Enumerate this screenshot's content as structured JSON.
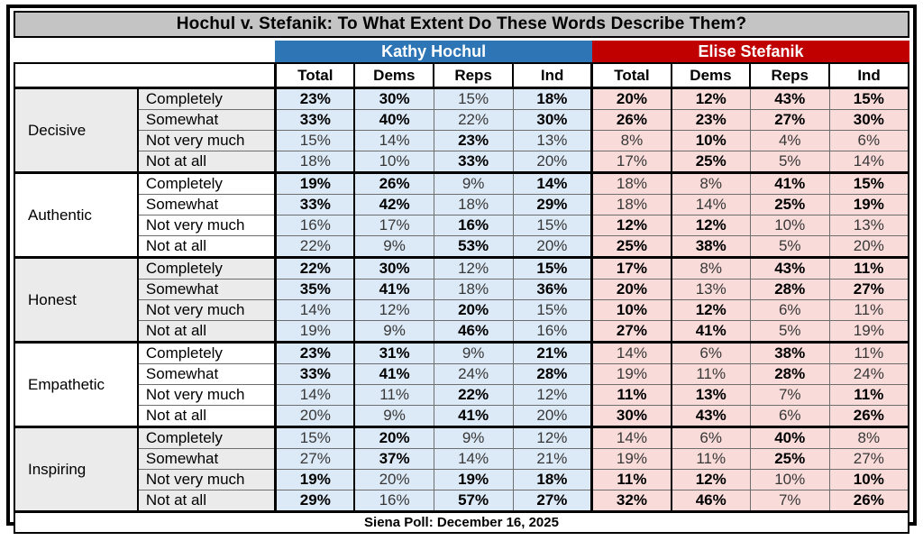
{
  "colors": {
    "hochul_header": "#2e75b6",
    "stefanik_header": "#c00000",
    "hochul_cell": "#dce9f6",
    "stefanik_cell": "#f9dcda",
    "title_bar": "#c4c4c4",
    "label_shade": "#ebebeb"
  },
  "chart_data": {
    "type": "table",
    "title": "Hochul v. Stefanik: To What Extent Do These Words Describe Them?",
    "source_note": "Siena Poll: December 16, 2025",
    "col_groups": [
      "Kathy Hochul",
      "Elise Stefanik"
    ],
    "columns": [
      "Total",
      "Dems",
      "Reps",
      "Ind"
    ],
    "answer_scale": [
      "Completely",
      "Somewhat",
      "Not very much",
      "Not at all"
    ],
    "sections": [
      {
        "trait": "Decisive",
        "rows": [
          {
            "label": "Completely",
            "hochul": [
              "23%",
              "30%",
              "15%",
              "18%"
            ],
            "hochul_bold": [
              1,
              1,
              0,
              1
            ],
            "stefanik": [
              "20%",
              "12%",
              "43%",
              "15%"
            ],
            "stefanik_bold": [
              1,
              1,
              1,
              1
            ]
          },
          {
            "label": "Somewhat",
            "hochul": [
              "33%",
              "40%",
              "22%",
              "30%"
            ],
            "hochul_bold": [
              1,
              1,
              0,
              1
            ],
            "stefanik": [
              "26%",
              "23%",
              "27%",
              "30%"
            ],
            "stefanik_bold": [
              1,
              1,
              1,
              1
            ]
          },
          {
            "label": "Not very much",
            "hochul": [
              "15%",
              "14%",
              "23%",
              "13%"
            ],
            "hochul_bold": [
              0,
              0,
              1,
              0
            ],
            "stefanik": [
              "8%",
              "10%",
              "4%",
              "6%"
            ],
            "stefanik_bold": [
              0,
              1,
              0,
              0
            ]
          },
          {
            "label": "Not at all",
            "hochul": [
              "18%",
              "10%",
              "33%",
              "20%"
            ],
            "hochul_bold": [
              0,
              0,
              1,
              0
            ],
            "stefanik": [
              "17%",
              "25%",
              "5%",
              "14%"
            ],
            "stefanik_bold": [
              0,
              1,
              0,
              0
            ]
          }
        ]
      },
      {
        "trait": "Authentic",
        "rows": [
          {
            "label": "Completely",
            "hochul": [
              "19%",
              "26%",
              "9%",
              "14%"
            ],
            "hochul_bold": [
              1,
              1,
              0,
              1
            ],
            "stefanik": [
              "18%",
              "8%",
              "41%",
              "15%"
            ],
            "stefanik_bold": [
              0,
              0,
              1,
              1
            ]
          },
          {
            "label": "Somewhat",
            "hochul": [
              "33%",
              "42%",
              "18%",
              "29%"
            ],
            "hochul_bold": [
              1,
              1,
              0,
              1
            ],
            "stefanik": [
              "18%",
              "14%",
              "25%",
              "19%"
            ],
            "stefanik_bold": [
              0,
              0,
              1,
              1
            ]
          },
          {
            "label": "Not very much",
            "hochul": [
              "16%",
              "17%",
              "16%",
              "15%"
            ],
            "hochul_bold": [
              0,
              0,
              1,
              0
            ],
            "stefanik": [
              "12%",
              "12%",
              "10%",
              "13%"
            ],
            "stefanik_bold": [
              1,
              1,
              0,
              0
            ]
          },
          {
            "label": "Not at all",
            "hochul": [
              "22%",
              "9%",
              "53%",
              "20%"
            ],
            "hochul_bold": [
              0,
              0,
              1,
              0
            ],
            "stefanik": [
              "25%",
              "38%",
              "5%",
              "20%"
            ],
            "stefanik_bold": [
              1,
              1,
              0,
              0
            ]
          }
        ]
      },
      {
        "trait": "Honest",
        "rows": [
          {
            "label": "Completely",
            "hochul": [
              "22%",
              "30%",
              "12%",
              "15%"
            ],
            "hochul_bold": [
              1,
              1,
              0,
              1
            ],
            "stefanik": [
              "17%",
              "8%",
              "43%",
              "11%"
            ],
            "stefanik_bold": [
              1,
              0,
              1,
              1
            ]
          },
          {
            "label": "Somewhat",
            "hochul": [
              "35%",
              "41%",
              "18%",
              "36%"
            ],
            "hochul_bold": [
              1,
              1,
              0,
              1
            ],
            "stefanik": [
              "20%",
              "13%",
              "28%",
              "27%"
            ],
            "stefanik_bold": [
              1,
              0,
              1,
              1
            ]
          },
          {
            "label": "Not very much",
            "hochul": [
              "14%",
              "12%",
              "20%",
              "15%"
            ],
            "hochul_bold": [
              0,
              0,
              1,
              0
            ],
            "stefanik": [
              "10%",
              "12%",
              "6%",
              "11%"
            ],
            "stefanik_bold": [
              1,
              1,
              0,
              0
            ]
          },
          {
            "label": "Not at all",
            "hochul": [
              "19%",
              "9%",
              "46%",
              "16%"
            ],
            "hochul_bold": [
              0,
              0,
              1,
              0
            ],
            "stefanik": [
              "27%",
              "41%",
              "5%",
              "19%"
            ],
            "stefanik_bold": [
              1,
              1,
              0,
              0
            ]
          }
        ]
      },
      {
        "trait": "Empathetic",
        "rows": [
          {
            "label": "Completely",
            "hochul": [
              "23%",
              "31%",
              "9%",
              "21%"
            ],
            "hochul_bold": [
              1,
              1,
              0,
              1
            ],
            "stefanik": [
              "14%",
              "6%",
              "38%",
              "11%"
            ],
            "stefanik_bold": [
              0,
              0,
              1,
              0
            ]
          },
          {
            "label": "Somewhat",
            "hochul": [
              "33%",
              "41%",
              "24%",
              "28%"
            ],
            "hochul_bold": [
              1,
              1,
              0,
              1
            ],
            "stefanik": [
              "19%",
              "11%",
              "28%",
              "24%"
            ],
            "stefanik_bold": [
              0,
              0,
              1,
              0
            ]
          },
          {
            "label": "Not very much",
            "hochul": [
              "14%",
              "11%",
              "22%",
              "12%"
            ],
            "hochul_bold": [
              0,
              0,
              1,
              0
            ],
            "stefanik": [
              "11%",
              "13%",
              "7%",
              "11%"
            ],
            "stefanik_bold": [
              1,
              1,
              0,
              1
            ]
          },
          {
            "label": "Not at all",
            "hochul": [
              "20%",
              "9%",
              "41%",
              "20%"
            ],
            "hochul_bold": [
              0,
              0,
              1,
              0
            ],
            "stefanik": [
              "30%",
              "43%",
              "6%",
              "26%"
            ],
            "stefanik_bold": [
              1,
              1,
              0,
              1
            ]
          }
        ]
      },
      {
        "trait": "Inspiring",
        "rows": [
          {
            "label": "Completely",
            "hochul": [
              "15%",
              "20%",
              "9%",
              "12%"
            ],
            "hochul_bold": [
              0,
              1,
              0,
              0
            ],
            "stefanik": [
              "14%",
              "6%",
              "40%",
              "8%"
            ],
            "stefanik_bold": [
              0,
              0,
              1,
              0
            ]
          },
          {
            "label": "Somewhat",
            "hochul": [
              "27%",
              "37%",
              "14%",
              "21%"
            ],
            "hochul_bold": [
              0,
              1,
              0,
              0
            ],
            "stefanik": [
              "19%",
              "11%",
              "25%",
              "27%"
            ],
            "stefanik_bold": [
              0,
              0,
              1,
              0
            ]
          },
          {
            "label": "Not very much",
            "hochul": [
              "19%",
              "20%",
              "19%",
              "18%"
            ],
            "hochul_bold": [
              1,
              0,
              1,
              1
            ],
            "stefanik": [
              "11%",
              "12%",
              "10%",
              "10%"
            ],
            "stefanik_bold": [
              1,
              1,
              0,
              1
            ]
          },
          {
            "label": "Not at all",
            "hochul": [
              "29%",
              "16%",
              "57%",
              "27%"
            ],
            "hochul_bold": [
              1,
              0,
              1,
              1
            ],
            "stefanik": [
              "32%",
              "46%",
              "7%",
              "26%"
            ],
            "stefanik_bold": [
              1,
              1,
              0,
              1
            ]
          }
        ]
      }
    ]
  }
}
